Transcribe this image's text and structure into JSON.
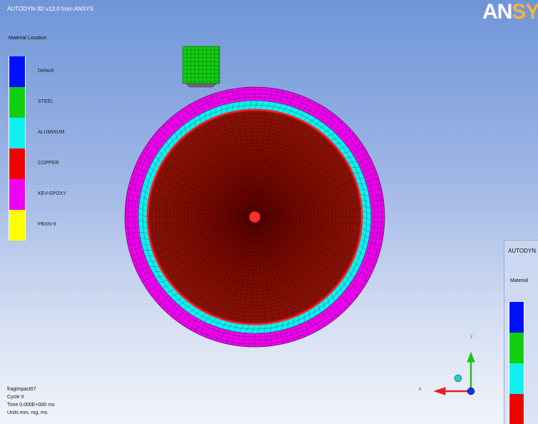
{
  "window": {
    "title": "AUTODYN-3D v13.0 from ANSYS"
  },
  "brand": {
    "prefix": "AN",
    "suffix": "SYS"
  },
  "legend": {
    "title": "Material Location",
    "items": [
      {
        "label": "Default",
        "color": "#0010ff"
      },
      {
        "label": "STEEL",
        "color": "#10d010"
      },
      {
        "label": "ALUMINUM",
        "color": "#10f0f0"
      },
      {
        "label": "COPPER",
        "color": "#f00000"
      },
      {
        "label": "KEV-EPOXY",
        "color": "#f000f0"
      },
      {
        "label": "PBXN-9",
        "color": "#ffff00"
      }
    ]
  },
  "info": {
    "model": "fragimpact07",
    "cycle": "Cycle 0",
    "time": "Time 0.000E+000 ms",
    "units": "Units mm, mg, ms"
  },
  "side_panel": {
    "title": "AUTODYN",
    "legend_title": "Material",
    "colors": [
      "#0010ff",
      "#10d010",
      "#10f0f0",
      "#f00000"
    ]
  },
  "axes": {
    "x_label": "x",
    "y_label": "y",
    "x_color": "#e02020",
    "y_color": "#20c020"
  },
  "scene": {
    "outer_ring_color": "#f000f0",
    "liner_color": "#10f0f0",
    "core_color": "#cc0000",
    "projectile_color": "#10d010"
  }
}
